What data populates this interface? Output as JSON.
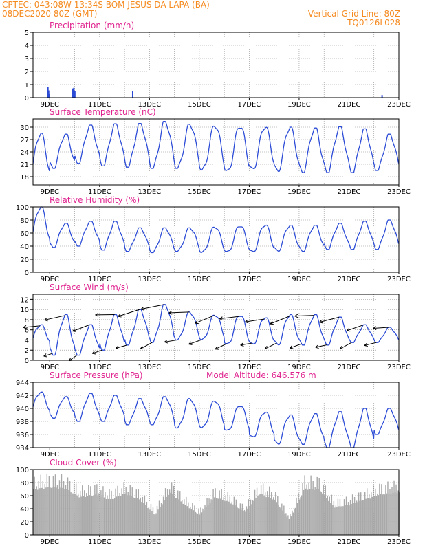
{
  "header": {
    "line1": "CPTEC:   043:08W-13:34S   BOM JESUS DA LAPA (BA)",
    "line2_left": "08DEC2020 80Z (GMT)",
    "line2_right": "Vertical Grid Line: 80Z",
    "line3_right": "TQ0126L028"
  },
  "colors": {
    "header": "#f58a1f",
    "title": "#e0248f",
    "line": "#2b4bd6",
    "bar": "#2b4bd6",
    "cloud": "#a9a9a9"
  },
  "x_axis": {
    "labels": [
      "9DEC",
      "11DEC",
      "13DEC",
      "15DEC",
      "17DEC",
      "19DEC",
      "21DEC",
      "23DEC"
    ],
    "start_day": 8.33,
    "end_day": 23.0
  },
  "chart_data": [
    {
      "type": "bar",
      "title": "Precipitation (mm/h)",
      "ylim": [
        0,
        5
      ],
      "yticks": [
        "0",
        "1",
        "2",
        "3",
        "4",
        "5"
      ],
      "x": [
        "9DEC",
        "9DEC",
        "9DEC",
        "10DEC",
        "10DEC",
        "10DEC",
        "12DEC",
        "22DEC"
      ],
      "days": [
        8.9,
        8.93,
        8.96,
        9.9,
        9.94,
        9.98,
        12.3,
        22.3
      ],
      "values": [
        0.8,
        0.55,
        0.3,
        0.7,
        0.75,
        0.5,
        0.5,
        0.2
      ]
    },
    {
      "type": "line",
      "title": "Surface Temperature (nC)",
      "ylim": [
        16,
        32
      ],
      "yticks": [
        "18",
        "21",
        "24",
        "27",
        "30"
      ],
      "yvals": [
        18,
        21,
        24,
        27,
        30
      ],
      "diurnal_max": [
        28.5,
        28.3,
        30.5,
        30.8,
        30.9,
        31.4,
        30.7,
        30.5,
        30.4,
        30.2,
        30.0,
        29.8,
        30.1,
        29.6,
        28.3
      ],
      "diurnal_min": [
        17.0,
        20.0,
        21.2,
        20.6,
        20.3,
        20.0,
        20.0,
        19.5,
        19.0,
        19.5,
        19.2,
        19.0,
        19.0,
        19.0,
        19.5
      ]
    },
    {
      "type": "line",
      "title": "Relative Humidity (%)",
      "ylim": [
        0,
        100
      ],
      "yticks": [
        "0",
        "20",
        "40",
        "60",
        "80",
        "100"
      ],
      "diurnal_max": [
        100,
        75,
        78,
        78,
        68,
        68,
        68,
        70,
        72,
        73,
        72,
        72,
        75,
        78,
        80
      ],
      "diurnal_min": [
        40,
        38,
        40,
        34,
        32,
        30,
        32,
        30,
        30,
        30,
        32,
        32,
        35,
        35,
        35
      ]
    },
    {
      "type": "line",
      "title": "Surface Wind (m/s)",
      "ylim": [
        0,
        13
      ],
      "yticks": [
        "0",
        "2",
        "4",
        "6",
        "8",
        "10",
        "12"
      ],
      "yvals": [
        0,
        2,
        4,
        6,
        8,
        10,
        12
      ],
      "diurnal_max": [
        7.0,
        9.0,
        7.0,
        9.0,
        10.0,
        11.0,
        9.5,
        9.0,
        9.0,
        8.5,
        9.0,
        9.0,
        8.5,
        7.0,
        6.5
      ],
      "diurnal_min": [
        3.0,
        1.0,
        1.0,
        2.0,
        3.0,
        3.5,
        4.0,
        4.0,
        3.0,
        3.0,
        3.0,
        3.0,
        3.0,
        3.5,
        3.5
      ]
    },
    {
      "type": "line",
      "title": "Surface Pressure (hPa)",
      "subtitle": "Model Altitude: 646.576 m",
      "ylim": [
        934,
        944
      ],
      "yticks": [
        "934",
        "936",
        "938",
        "940",
        "942",
        "944"
      ],
      "diurnal_max": [
        942.5,
        941.8,
        942.3,
        942.0,
        941.5,
        941.8,
        941.5,
        941.2,
        940.5,
        939.5,
        939.0,
        939.2,
        939.5,
        940.0,
        940.0
      ],
      "diurnal_min": [
        939.0,
        938.5,
        938.0,
        938.0,
        937.5,
        937.5,
        937.0,
        937.0,
        936.5,
        935.5,
        934.5,
        934.5,
        934.0,
        934.0,
        936.0
      ]
    },
    {
      "type": "bar",
      "title": "Cloud Cover (%)",
      "ylim": [
        0,
        100
      ],
      "yticks": [
        "0",
        "20",
        "40",
        "60",
        "80",
        "100"
      ],
      "envelope_days": [
        8.33,
        9.0,
        9.6,
        10.2,
        10.8,
        11.4,
        12.0,
        12.6,
        13.2,
        13.8,
        14.4,
        15.0,
        15.6,
        16.2,
        16.8,
        17.4,
        18.0,
        18.6,
        19.2,
        19.8,
        20.4,
        21.0,
        21.6,
        22.2,
        23.0
      ],
      "envelope_values": [
        90,
        95,
        92,
        75,
        80,
        70,
        82,
        70,
        40,
        85,
        60,
        40,
        75,
        65,
        45,
        82,
        70,
        30,
        92,
        90,
        55,
        60,
        70,
        80,
        85
      ]
    }
  ]
}
